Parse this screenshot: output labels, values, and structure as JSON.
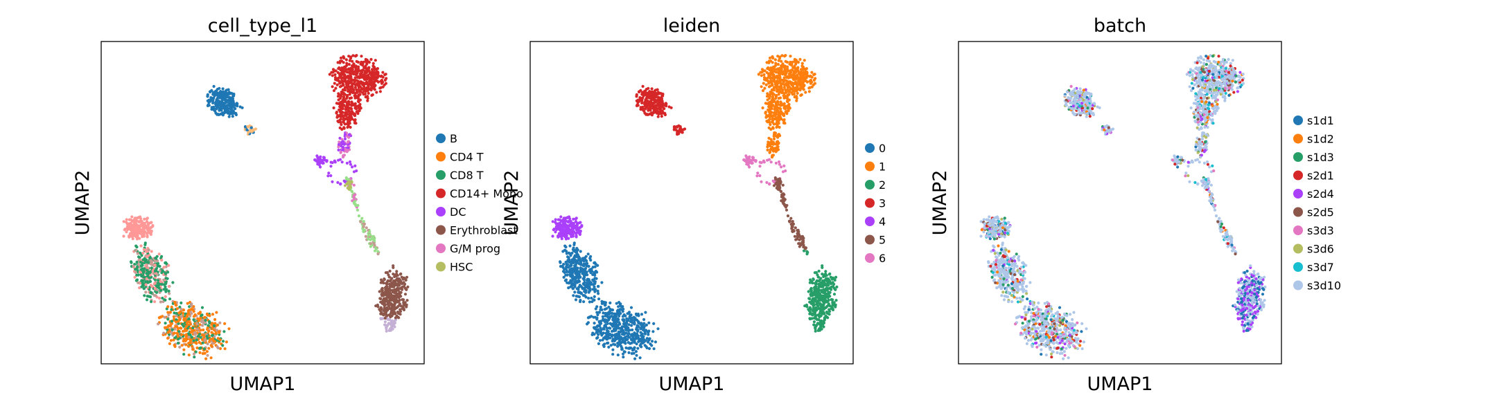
{
  "chart_data": [
    {
      "type": "scatter",
      "title": "cell_type_l1",
      "xlabel": "UMAP1",
      "ylabel": "UMAP2",
      "grid": false,
      "legend_placement": "right",
      "legend": [
        {
          "label": "B",
          "color": "#1f77b4"
        },
        {
          "label": "CD4 T",
          "color": "#ff7f0e"
        },
        {
          "label": "CD8 T",
          "color": "#279e68"
        },
        {
          "label": "CD14+ Mono",
          "color": "#d62728"
        },
        {
          "label": "DC",
          "color": "#aa40fc"
        },
        {
          "label": "Erythroblast",
          "color": "#8c564b"
        },
        {
          "label": "G/M prog",
          "color": "#e377c2"
        },
        {
          "label": "HSC",
          "color": "#b5bd61"
        }
      ],
      "extra_colors": [
        "#ff9896",
        "#98df8a",
        "#c5b0d5",
        "#c49c94",
        "#ffbb78"
      ]
    },
    {
      "type": "scatter",
      "title": "leiden",
      "xlabel": "UMAP1",
      "ylabel": "UMAP2",
      "grid": false,
      "legend_placement": "right",
      "legend": [
        {
          "label": "0",
          "color": "#1f77b4"
        },
        {
          "label": "1",
          "color": "#ff7f0e"
        },
        {
          "label": "2",
          "color": "#279e68"
        },
        {
          "label": "3",
          "color": "#d62728"
        },
        {
          "label": "4",
          "color": "#aa40fc"
        },
        {
          "label": "5",
          "color": "#8c564b"
        },
        {
          "label": "6",
          "color": "#e377c2"
        }
      ]
    },
    {
      "type": "scatter",
      "title": "batch",
      "xlabel": "UMAP1",
      "ylabel": "UMAP2",
      "grid": false,
      "legend_placement": "right",
      "legend": [
        {
          "label": "s1d1",
          "color": "#1f77b4"
        },
        {
          "label": "s1d2",
          "color": "#ff7f0e"
        },
        {
          "label": "s1d3",
          "color": "#279e68"
        },
        {
          "label": "s2d1",
          "color": "#d62728"
        },
        {
          "label": "s2d4",
          "color": "#aa40fc"
        },
        {
          "label": "s2d5",
          "color": "#8c564b"
        },
        {
          "label": "s3d3",
          "color": "#e377c2"
        },
        {
          "label": "s3d6",
          "color": "#b5bd61"
        },
        {
          "label": "s3d7",
          "color": "#17becf"
        },
        {
          "label": "s3d10",
          "color": "#aec7e8"
        }
      ]
    }
  ]
}
